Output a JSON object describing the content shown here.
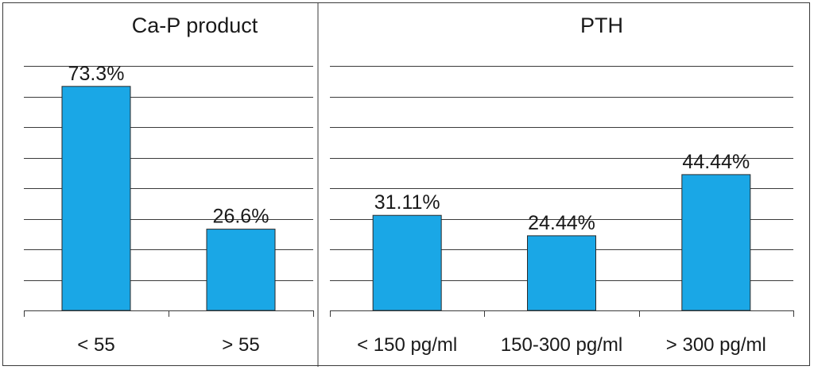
{
  "chart_data": [
    {
      "type": "bar",
      "title": "Ca-P product",
      "categories": [
        "< 55",
        "> 55"
      ],
      "values": [
        73.3,
        26.6
      ],
      "data_labels": [
        "73.3%",
        "26.6%"
      ],
      "ylim": [
        0,
        80
      ],
      "grid": true,
      "bar_color": "#1aa7e6"
    },
    {
      "type": "bar",
      "title": "PTH",
      "categories": [
        "< 150 pg/ml",
        "150-300 pg/ml",
        "> 300 pg/ml"
      ],
      "values": [
        31.11,
        24.44,
        44.44
      ],
      "data_labels": [
        "31.11%",
        "24.44%",
        "44.44%"
      ],
      "ylim": [
        0,
        80
      ],
      "grid": true,
      "bar_color": "#1aa7e6"
    }
  ]
}
